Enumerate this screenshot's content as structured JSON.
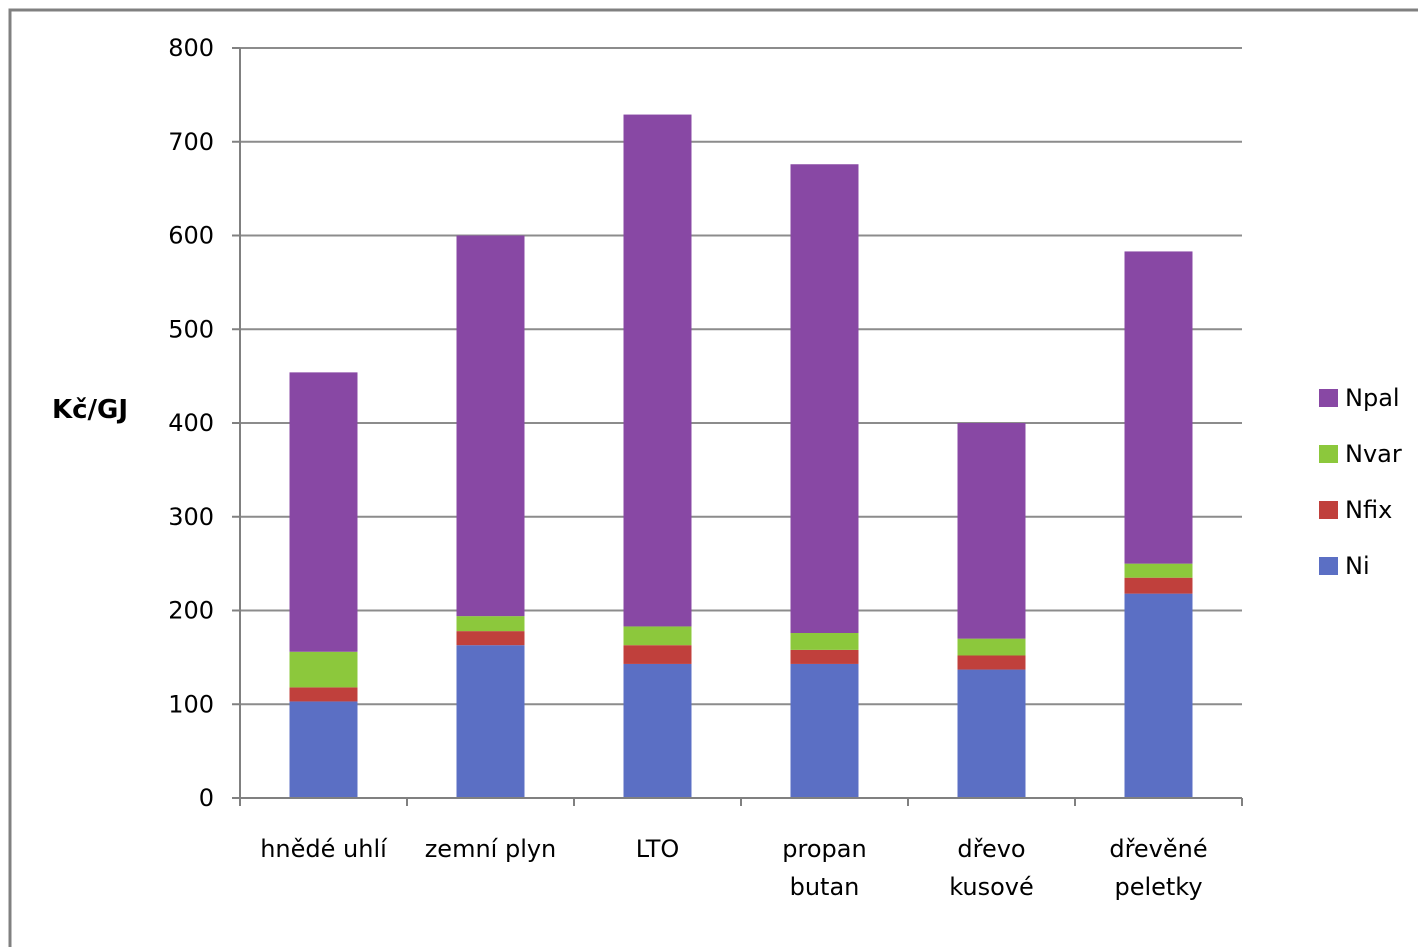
{
  "chart_data": {
    "type": "bar",
    "stacked": true,
    "title": "",
    "xlabel": "",
    "ylabel": "Kč/GJ",
    "ylim": [
      0,
      800
    ],
    "yticks": [
      0,
      100,
      200,
      300,
      400,
      500,
      600,
      700,
      800
    ],
    "grid": true,
    "legend_position": "right",
    "categories": [
      [
        "hnědé uhlí"
      ],
      [
        "zemní plyn"
      ],
      [
        "LTO"
      ],
      [
        "propan",
        "butan"
      ],
      [
        "dřevo",
        "kusové"
      ],
      [
        "dřevěné",
        "peletky"
      ]
    ],
    "series": [
      {
        "name": "Ni",
        "color": "#5B6FC4",
        "values": [
          103,
          163,
          143,
          143,
          137,
          218
        ]
      },
      {
        "name": "Nfix",
        "color": "#C0403C",
        "values": [
          15,
          15,
          20,
          15,
          15,
          17
        ]
      },
      {
        "name": "Nvar",
        "color": "#8CC83C",
        "values": [
          38,
          16,
          20,
          18,
          18,
          15
        ]
      },
      {
        "name": "Npal",
        "color": "#8848A4",
        "values": [
          298,
          406,
          546,
          500,
          230,
          333
        ]
      }
    ]
  }
}
